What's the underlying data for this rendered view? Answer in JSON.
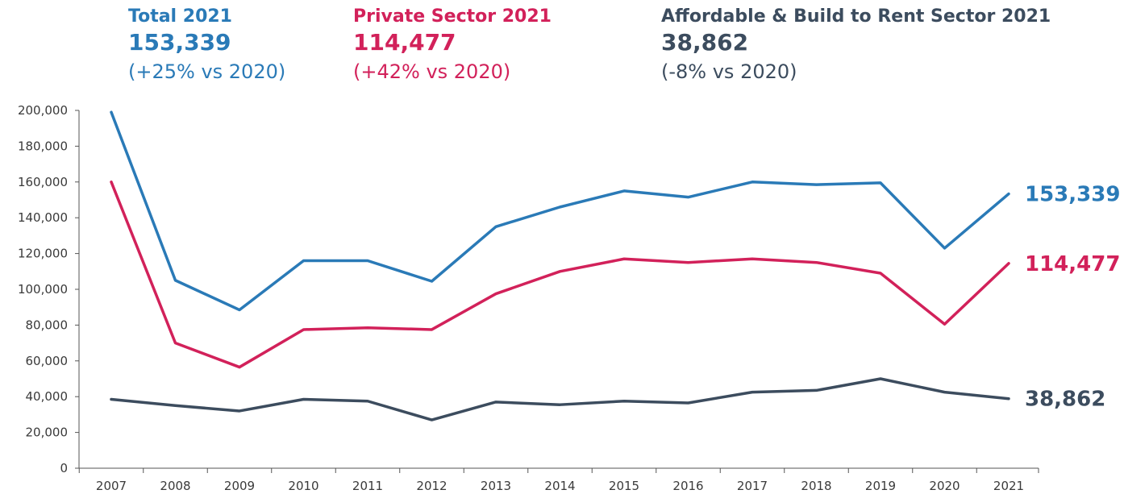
{
  "summaries": {
    "total": {
      "title": "Total 2021",
      "value": "153,339",
      "change": "(+25% vs 2020)",
      "color": "#2a7ab7"
    },
    "private": {
      "title": "Private Sector 2021",
      "value": "114,477",
      "change": "(+42% vs 2020)",
      "color": "#d2215a"
    },
    "afford": {
      "title": "Affordable & Build to Rent Sector 2021",
      "value": "38,862",
      "change": "(-8% vs 2020)",
      "color": "#3c4c5e"
    }
  },
  "chart_data": {
    "type": "line",
    "title": "",
    "xlabel": "",
    "ylabel": "",
    "x": [
      "2007",
      "2008",
      "2009",
      "2010",
      "2011",
      "2012",
      "2013",
      "2014",
      "2015",
      "2016",
      "2017",
      "2018",
      "2019",
      "2020",
      "2021"
    ],
    "ylim": [
      0,
      200000
    ],
    "yticks": [
      0,
      20000,
      40000,
      60000,
      80000,
      100000,
      120000,
      140000,
      160000,
      180000,
      200000
    ],
    "ytick_labels": [
      "0",
      "20,000",
      "40,000",
      "60,000",
      "80,000",
      "100,000",
      "120,000",
      "140,000",
      "160,000",
      "180,000",
      "200,000"
    ],
    "grid": false,
    "series": [
      {
        "key": "total",
        "color": "#2a7ab7",
        "end_label": "153,339",
        "values": [
          199000,
          105000,
          88500,
          116000,
          116000,
          104500,
          135000,
          146000,
          155000,
          151500,
          160000,
          158500,
          159500,
          123000,
          153339
        ]
      },
      {
        "key": "private",
        "color": "#d2215a",
        "end_label": "114,477",
        "values": [
          160000,
          70000,
          56500,
          77500,
          78500,
          77500,
          97500,
          110000,
          117000,
          115000,
          117000,
          115000,
          109000,
          80500,
          114477
        ]
      },
      {
        "key": "afford",
        "color": "#3c4c5e",
        "end_label": "38,862",
        "values": [
          38500,
          35000,
          32000,
          38500,
          37500,
          27000,
          37000,
          35500,
          37500,
          36500,
          42500,
          43500,
          50000,
          42500,
          38862
        ]
      }
    ]
  }
}
